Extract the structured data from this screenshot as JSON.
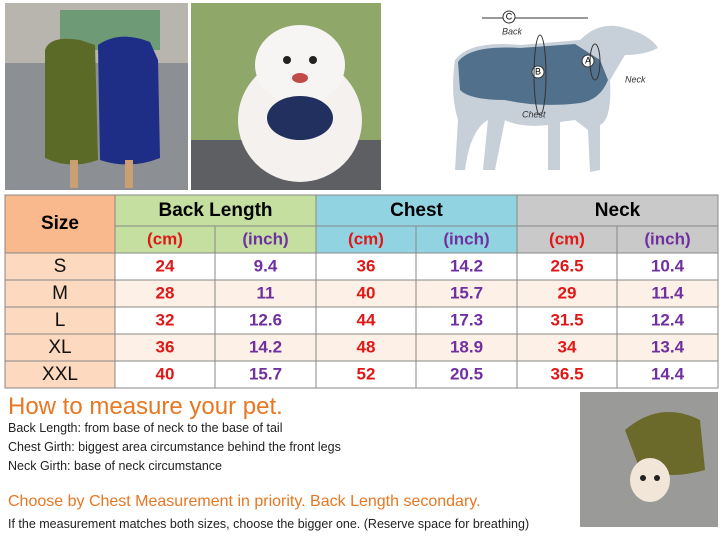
{
  "diagram": {
    "labels": {
      "c": "C",
      "back": "Back",
      "b": "B",
      "a": "A",
      "neck": "Neck",
      "chest": "Chest"
    }
  },
  "table": {
    "header": [
      "Size",
      "Back Length",
      "Chest",
      "Neck"
    ],
    "units": [
      "(cm)",
      "(inch)",
      "(cm)",
      "(inch)",
      "(cm)",
      "(inch)"
    ],
    "rows": [
      [
        "S",
        24,
        9.4,
        36,
        14.2,
        26.5,
        10.4
      ],
      [
        "M",
        28,
        11,
        40,
        15.7,
        29,
        11.4
      ],
      [
        "L",
        32,
        12.6,
        44,
        17.3,
        31.5,
        12.4
      ],
      [
        "XL",
        36,
        14.2,
        48,
        18.9,
        34,
        13.4
      ],
      [
        "XXL",
        40,
        15.7,
        52,
        20.5,
        36.5,
        14.4
      ]
    ]
  },
  "instructions": {
    "title": "How to measure your pet.",
    "lines": [
      "Back Length: from base of neck to the base of tail",
      "Chest Girth: biggest area circumstance behind the front legs",
      "Neck Girth: base of neck circumstance"
    ],
    "priority": "Choose by Chest Measurement in priority. Back Length secondary.",
    "note": "If the measurement matches both sizes, choose the bigger one. (Reserve space for breathing)"
  }
}
